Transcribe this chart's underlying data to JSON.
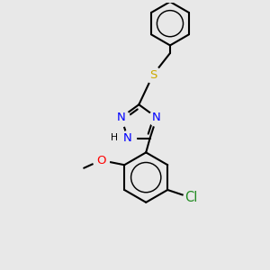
{
  "bg_color": "#e8e8e8",
  "bond_color": "#000000",
  "bond_width": 1.5,
  "figsize": [
    3.0,
    3.0
  ],
  "dpi": 100,
  "xlim": [
    -1.6,
    1.6
  ],
  "ylim": [
    -1.7,
    1.7
  ],
  "s_color": "#ccaa00",
  "n_color": "#0000ff",
  "o_color": "#ff0000",
  "cl_color": "#228b22",
  "font_size": 9.5
}
